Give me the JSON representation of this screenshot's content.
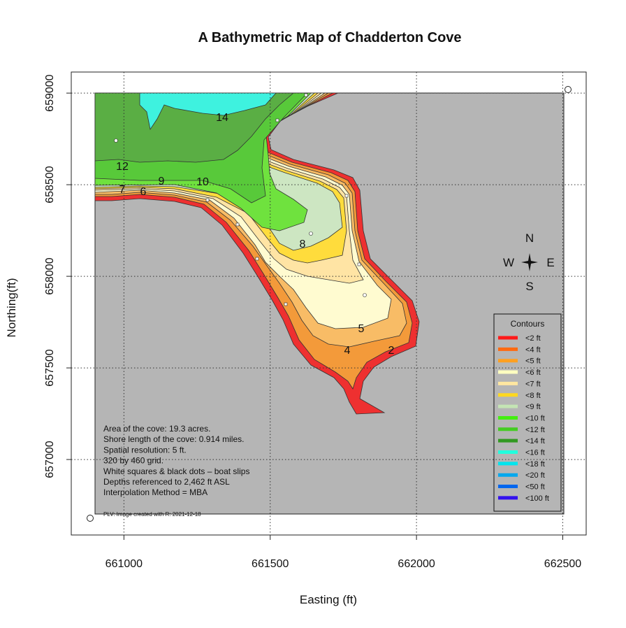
{
  "chart_data": {
    "type": "map",
    "title": "A Bathymetric Map of  Chadderton Cove",
    "xlabel": "Easting (ft)",
    "ylabel": "Northing(ft)",
    "xlim": [
      660820,
      662580
    ],
    "ylim": [
      656588,
      659115
    ],
    "xticks": [
      661000,
      661500,
      662000,
      662500
    ],
    "yticks": [
      657000,
      657500,
      658000,
      658500,
      659000
    ],
    "grid": true,
    "legend": {
      "title": "Contours",
      "labels": [
        "<2 ft",
        "<4 ft",
        "<5 ft",
        "<6 ft",
        "<7 ft",
        "<8 ft",
        "<9 ft",
        "<10 ft",
        "<12 ft",
        "<14 ft",
        "<16 ft",
        "<18 ft",
        "<20 ft",
        "<50 ft",
        "<100 ft"
      ],
      "colors": [
        "#ff1a1a",
        "#ff6a10",
        "#ffa020",
        "#ffffc0",
        "#ffe7a0",
        "#ffd820",
        "#c4e4b4",
        "#44ee11",
        "#44cc22",
        "#339922",
        "#22ffdd",
        "#00e5ee",
        "#00a8ee",
        "#0066ee",
        "#3311ee"
      ]
    },
    "contour_labels": [
      "14",
      "12",
      "9",
      "10",
      "7",
      "6",
      "8",
      "5",
      "4",
      "2"
    ],
    "compass": {
      "n": "N",
      "w": "W",
      "e": "E",
      "s": "S"
    },
    "annotations": [
      "Area of the cove: 19.3 acres.",
      "Shore length of the cove: 0.914 miles.",
      "Spatial resolution: 5 ft.",
      "320 by 460 grid.",
      "White squares & black dots – boat slips",
      "Depths referenced to 2,462 ft ASL",
      "Interpolation Method =  MBA"
    ],
    "footnote": "PLV: Image created with R: 2021-12-18"
  }
}
